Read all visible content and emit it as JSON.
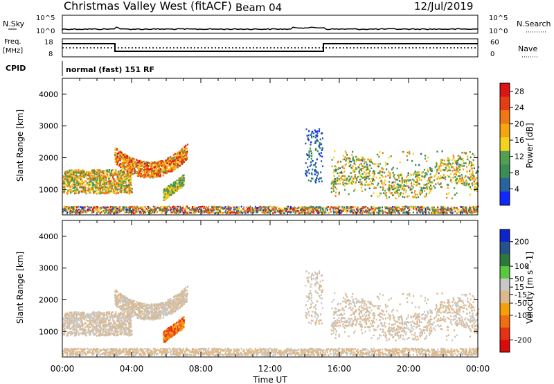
{
  "header": {
    "title": "Christmas Valley West (fitACF)",
    "beam": "Beam 04",
    "date": "12/Jul/2019"
  },
  "panels": {
    "nsky": {
      "label": "N.Sky",
      "ticks": [
        "10^5",
        "10^0"
      ]
    },
    "nsearch": {
      "label": "N.Search",
      "ticks": [
        "10^5",
        "10^0"
      ]
    },
    "freq": {
      "label": "Freq.",
      "unit": "[MHz]",
      "ticks": [
        "18",
        "8"
      ]
    },
    "nave": {
      "label": "Nave",
      "ticks": [
        "60",
        "0"
      ]
    },
    "cpid": {
      "label": "CPID",
      "text": "normal (fast) 151 RF"
    }
  },
  "colors": {
    "power": [
      "#0f28ff",
      "#28649b",
      "#3c8c55",
      "#50a050",
      "#f5d21e",
      "#f5a50f",
      "#f07814",
      "#e63c14",
      "#dc1414"
    ],
    "velocity": [
      "#0f23cd",
      "#28508c",
      "#2d783c",
      "#5ac83c",
      "#c8c8c8",
      "#dcb98c",
      "#f5a00a",
      "#f06e0f",
      "#e63214",
      "#dc0a0a"
    ]
  },
  "chart_data": [
    {
      "type": "heatmap",
      "title": "",
      "xlabel": "Time UT",
      "ylabel": "Slant Range [km]",
      "x_ticks": [
        "00:00",
        "04:00",
        "08:00",
        "12:00",
        "16:00",
        "20:00",
        "00:00"
      ],
      "xlim": [
        0,
        24
      ],
      "ylim": [
        200,
        4500
      ],
      "y_ticks": [
        1000,
        2000,
        3000,
        4000
      ],
      "colorbar": {
        "label": "Power [dB]",
        "ticks": [
          4,
          8,
          12,
          16,
          20,
          24,
          28
        ],
        "range": [
          0,
          30
        ]
      },
      "features": [
        {
          "region": "00:00–04:00",
          "range_km": [
            900,
            1600
          ],
          "power_db": "8–28"
        },
        {
          "region": "03:00–07:00 arc",
          "range_km": [
            1400,
            2900
          ],
          "power_db": "12–28"
        },
        {
          "region": "05:30–07:00",
          "range_km": [
            800,
            1300
          ],
          "power_db": "8–16"
        },
        {
          "region": "14:00–15:00",
          "range_km": [
            1200,
            2900
          ],
          "power_db": "4–8"
        },
        {
          "region": "15:30–24:00",
          "range_km": [
            700,
            2200
          ],
          "power_db": "8–20"
        }
      ]
    },
    {
      "type": "heatmap",
      "title": "",
      "xlabel": "Time UT",
      "ylabel": "Slant Range [km]",
      "x_ticks": [
        "00:00",
        "04:00",
        "08:00",
        "12:00",
        "16:00",
        "20:00",
        "00:00"
      ],
      "xlim": [
        0,
        24
      ],
      "ylim": [
        200,
        4500
      ],
      "y_ticks": [
        1000,
        2000,
        3000,
        4000
      ],
      "colorbar": {
        "label": "Velocity [m s^-1]",
        "ticks": [
          200,
          100,
          50,
          15,
          -15,
          -50,
          -100,
          -200
        ],
        "range": [
          -250,
          250
        ]
      },
      "features": [
        {
          "region": "00:00–04:00",
          "range_km": [
            900,
            1500
          ],
          "velocity_ms": "-15–15"
        },
        {
          "region": "03:00–07:00 arc",
          "range_km": [
            1400,
            2900
          ],
          "velocity_ms": "-15–15"
        },
        {
          "region": "05:30–07:00",
          "range_km": [
            700,
            1300
          ],
          "velocity_ms": "-200–-50"
        },
        {
          "region": "15:30–24:00",
          "range_km": [
            800,
            2000
          ],
          "velocity_ms": "-15–15"
        }
      ]
    }
  ]
}
